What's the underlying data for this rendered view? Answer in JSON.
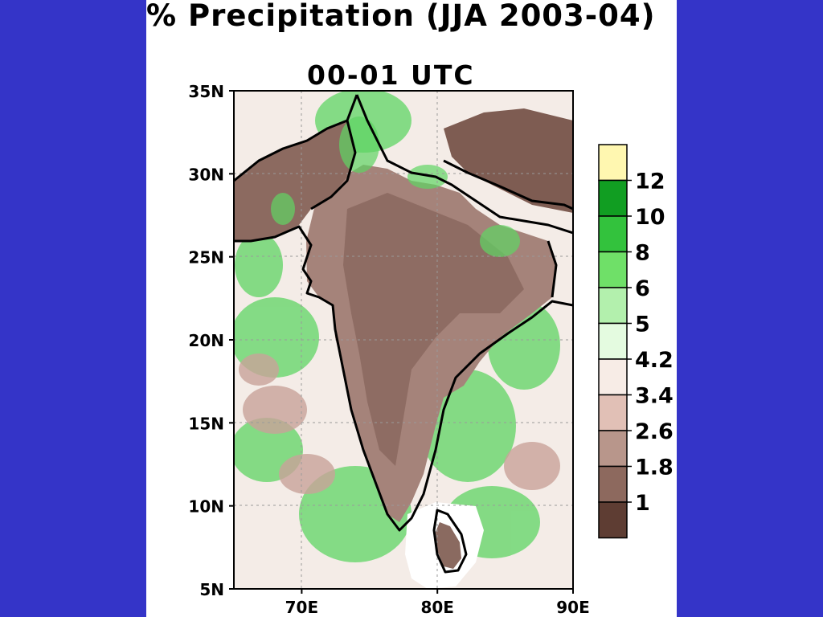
{
  "title": "% Precipitation (JJA 2003-04)",
  "subtitle": "00-01 UTC",
  "colors": {
    "background": "#3434c8",
    "panel": "#ffffff"
  },
  "chart_data": {
    "type": "heatmap",
    "title": "% Precipitation (JJA 2003-04)",
    "subtitle": "00-01 UTC",
    "x_axis": {
      "ticks": [
        "70E",
        "80E",
        "90E"
      ],
      "range_deg": [
        65,
        90
      ]
    },
    "y_axis": {
      "ticks": [
        "35N",
        "30N",
        "25N",
        "20N",
        "15N",
        "10N",
        "5N"
      ],
      "range_deg": [
        5,
        35
      ]
    },
    "grid": "dashed",
    "colorbar": {
      "placement": "right",
      "labels": [
        "12",
        "10",
        "8",
        "6",
        "5",
        "4.2",
        "3.4",
        "2.6",
        "1.8",
        "1"
      ],
      "colors": [
        "#fff7b0",
        "#119e22",
        "#33c23d",
        "#6fe068",
        "#b3f0ad",
        "#e4fbe0",
        "#f7ece6",
        "#e1c0b6",
        "#b8968b",
        "#8d695e",
        "#5e3d33"
      ]
    }
  }
}
